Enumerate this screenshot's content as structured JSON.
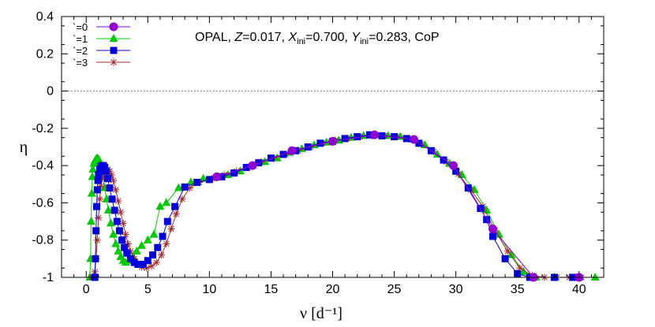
{
  "chart_data": {
    "type": "line",
    "annotation": {
      "prefix": "OPAL, ",
      "z_symbol": "Z",
      "z_value": "=0.017, ",
      "x_symbol": "X",
      "x_sub": "ini",
      "x_value": "=0.700, ",
      "y_symbol": "Y",
      "y_sub": "ini",
      "y_value": "=0.283, CoP"
    },
    "xlabel": "ν [d⁻¹]",
    "ylabel": "η",
    "xlim": [
      -2,
      42
    ],
    "ylim": [
      -1,
      0.4
    ],
    "x_ticks": [
      0,
      5,
      10,
      15,
      20,
      25,
      30,
      35,
      40
    ],
    "y_ticks": [
      0.4,
      0.2,
      0,
      -0.2,
      -0.4,
      -0.6,
      -0.8,
      -1
    ],
    "y_tick_labels": [
      "0.4",
      "0.2",
      "0",
      "-0.2",
      "-0.4",
      "-0.6",
      "-0.8",
      "-1"
    ],
    "zero_line": true,
    "legend_position": "top-left",
    "series": [
      {
        "name": "`=0",
        "color": "#9400d3",
        "marker": "circle",
        "points": [
          [
            10.6,
            -0.46
          ],
          [
            13.5,
            -0.4
          ],
          [
            16.7,
            -0.32
          ],
          [
            20.0,
            -0.27
          ],
          [
            23.4,
            -0.235
          ],
          [
            26.6,
            -0.26
          ],
          [
            29.8,
            -0.4
          ],
          [
            33.0,
            -0.74
          ],
          [
            36.3,
            -1.0
          ],
          [
            40.0,
            -1.0
          ]
        ]
      },
      {
        "name": "`=1",
        "color": "#00cc00",
        "marker": "triangle",
        "points": [
          [
            0.3,
            -1.0
          ],
          [
            0.35,
            -0.9
          ],
          [
            0.4,
            -0.7
          ],
          [
            0.45,
            -0.55
          ],
          [
            0.5,
            -0.46
          ],
          [
            0.55,
            -0.42
          ],
          [
            0.62,
            -0.39
          ],
          [
            0.7,
            -0.375
          ],
          [
            0.8,
            -0.365
          ],
          [
            0.9,
            -0.36
          ],
          [
            1.0,
            -0.365
          ],
          [
            1.1,
            -0.38
          ],
          [
            1.2,
            -0.41
          ],
          [
            1.35,
            -0.46
          ],
          [
            1.5,
            -0.52
          ],
          [
            1.65,
            -0.58
          ],
          [
            1.8,
            -0.64
          ],
          [
            2.0,
            -0.71
          ],
          [
            2.2,
            -0.77
          ],
          [
            2.4,
            -0.82
          ],
          [
            2.6,
            -0.86
          ],
          [
            2.8,
            -0.89
          ],
          [
            3.0,
            -0.91
          ],
          [
            3.2,
            -0.92
          ],
          [
            3.5,
            -0.91
          ],
          [
            3.8,
            -0.89
          ],
          [
            4.1,
            -0.86
          ],
          [
            4.5,
            -0.83
          ],
          [
            5.0,
            -0.8
          ],
          [
            5.5,
            -0.77
          ],
          [
            6.0,
            -0.62
          ],
          [
            6.5,
            -0.6
          ],
          [
            7.5,
            -0.52
          ],
          [
            8.5,
            -0.49
          ],
          [
            9.5,
            -0.47
          ],
          [
            10.5,
            -0.46
          ],
          [
            11.5,
            -0.45
          ],
          [
            12.5,
            -0.43
          ],
          [
            13.5,
            -0.4
          ],
          [
            14.5,
            -0.38
          ],
          [
            15.5,
            -0.36
          ],
          [
            16.5,
            -0.33
          ],
          [
            17.5,
            -0.31
          ],
          [
            18.5,
            -0.29
          ],
          [
            19.5,
            -0.275
          ],
          [
            20.5,
            -0.265
          ],
          [
            21.5,
            -0.25
          ],
          [
            22.5,
            -0.24
          ],
          [
            23.5,
            -0.235
          ],
          [
            24.5,
            -0.24
          ],
          [
            25.5,
            -0.245
          ],
          [
            26.5,
            -0.26
          ],
          [
            27.5,
            -0.29
          ],
          [
            28.5,
            -0.34
          ],
          [
            29.5,
            -0.39
          ],
          [
            30.5,
            -0.45
          ],
          [
            31.5,
            -0.53
          ],
          [
            32.5,
            -0.64
          ],
          [
            33.5,
            -0.77
          ],
          [
            34.5,
            -0.88
          ],
          [
            35.5,
            -0.97
          ],
          [
            36.5,
            -1.0
          ],
          [
            38.0,
            -1.0
          ],
          [
            40.0,
            -1.0
          ],
          [
            41.3,
            -1.0
          ]
        ]
      },
      {
        "name": "`=2",
        "color": "#0000dd",
        "marker": "square",
        "points": [
          [
            0.7,
            -1.0
          ],
          [
            0.75,
            -0.9
          ],
          [
            0.8,
            -0.75
          ],
          [
            0.85,
            -0.62
          ],
          [
            0.9,
            -0.53
          ],
          [
            0.95,
            -0.48
          ],
          [
            1.0,
            -0.45
          ],
          [
            1.1,
            -0.42
          ],
          [
            1.2,
            -0.405
          ],
          [
            1.3,
            -0.4
          ],
          [
            1.4,
            -0.4
          ],
          [
            1.5,
            -0.41
          ],
          [
            1.6,
            -0.43
          ],
          [
            1.75,
            -0.47
          ],
          [
            1.9,
            -0.52
          ],
          [
            2.1,
            -0.58
          ],
          [
            2.3,
            -0.64
          ],
          [
            2.5,
            -0.7
          ],
          [
            2.7,
            -0.75
          ],
          [
            2.9,
            -0.8
          ],
          [
            3.1,
            -0.84
          ],
          [
            3.3,
            -0.87
          ],
          [
            3.6,
            -0.9
          ],
          [
            3.9,
            -0.92
          ],
          [
            4.2,
            -0.93
          ],
          [
            4.6,
            -0.93
          ],
          [
            5.0,
            -0.91
          ],
          [
            5.4,
            -0.88
          ],
          [
            5.8,
            -0.84
          ],
          [
            6.2,
            -0.78
          ],
          [
            6.6,
            -0.7
          ],
          [
            7.2,
            -0.62
          ],
          [
            8.0,
            -0.515
          ],
          [
            9.0,
            -0.49
          ],
          [
            10.0,
            -0.475
          ],
          [
            11.0,
            -0.46
          ],
          [
            12.0,
            -0.44
          ],
          [
            13.0,
            -0.41
          ],
          [
            14.0,
            -0.385
          ],
          [
            15.0,
            -0.36
          ],
          [
            16.0,
            -0.34
          ],
          [
            17.0,
            -0.32
          ],
          [
            18.0,
            -0.3
          ],
          [
            19.0,
            -0.28
          ],
          [
            20.0,
            -0.27
          ],
          [
            21.0,
            -0.255
          ],
          [
            22.0,
            -0.245
          ],
          [
            23.0,
            -0.235
          ],
          [
            24.0,
            -0.24
          ],
          [
            25.0,
            -0.245
          ],
          [
            26.0,
            -0.255
          ],
          [
            27.0,
            -0.28
          ],
          [
            28.0,
            -0.32
          ],
          [
            29.0,
            -0.37
          ],
          [
            30.0,
            -0.43
          ],
          [
            31.0,
            -0.52
          ],
          [
            32.0,
            -0.63
          ],
          [
            32.5,
            -0.69
          ],
          [
            33.0,
            -0.78
          ],
          [
            34.0,
            -0.9
          ],
          [
            35.0,
            -0.98
          ],
          [
            36.0,
            -1.0
          ],
          [
            38.0,
            -1.0
          ],
          [
            39.5,
            -1.0
          ]
        ]
      },
      {
        "name": "`=3",
        "color": "#a52a2a",
        "marker": "star",
        "points": [
          [
            0.45,
            -1.0
          ],
          [
            0.55,
            -1.0
          ],
          [
            0.7,
            -0.97
          ],
          [
            0.8,
            -0.9
          ],
          [
            0.9,
            -0.8
          ],
          [
            1.0,
            -0.68
          ],
          [
            1.1,
            -0.58
          ],
          [
            1.2,
            -0.51
          ],
          [
            1.3,
            -0.47
          ],
          [
            1.45,
            -0.44
          ],
          [
            1.6,
            -0.425
          ],
          [
            1.75,
            -0.42
          ],
          [
            1.9,
            -0.43
          ],
          [
            2.05,
            -0.45
          ],
          [
            2.2,
            -0.48
          ],
          [
            2.4,
            -0.53
          ],
          [
            2.6,
            -0.59
          ],
          [
            2.8,
            -0.65
          ],
          [
            3.0,
            -0.71
          ],
          [
            3.2,
            -0.77
          ],
          [
            3.4,
            -0.82
          ],
          [
            3.6,
            -0.86
          ],
          [
            3.9,
            -0.9
          ],
          [
            4.2,
            -0.93
          ],
          [
            4.5,
            -0.945
          ],
          [
            4.9,
            -0.95
          ],
          [
            5.3,
            -0.94
          ],
          [
            5.7,
            -0.92
          ],
          [
            6.1,
            -0.88
          ],
          [
            6.5,
            -0.82
          ],
          [
            6.9,
            -0.74
          ],
          [
            7.3,
            -0.66
          ],
          [
            7.8,
            -0.58
          ],
          [
            8.4,
            -0.52
          ],
          [
            9.2,
            -0.49
          ],
          [
            10.2,
            -0.47
          ],
          [
            11.2,
            -0.45
          ],
          [
            12.2,
            -0.43
          ],
          [
            13.2,
            -0.405
          ],
          [
            14.2,
            -0.38
          ],
          [
            15.2,
            -0.36
          ],
          [
            16.2,
            -0.34
          ],
          [
            17.2,
            -0.32
          ],
          [
            18.2,
            -0.3
          ],
          [
            19.2,
            -0.28
          ],
          [
            20.2,
            -0.265
          ],
          [
            21.2,
            -0.255
          ],
          [
            22.2,
            -0.245
          ],
          [
            23.2,
            -0.24
          ],
          [
            24.2,
            -0.24
          ],
          [
            25.2,
            -0.245
          ],
          [
            26.2,
            -0.255
          ],
          [
            27.2,
            -0.285
          ],
          [
            28.2,
            -0.325
          ],
          [
            29.2,
            -0.38
          ],
          [
            30.2,
            -0.445
          ],
          [
            31.2,
            -0.53
          ],
          [
            32.2,
            -0.62
          ],
          [
            33.2,
            -0.75
          ],
          [
            34.2,
            -0.86
          ],
          [
            35.2,
            -0.95
          ],
          [
            36.2,
            -0.99
          ],
          [
            37.2,
            -1.0
          ],
          [
            38.2,
            -1.0
          ],
          [
            39.2,
            -1.0
          ],
          [
            40.2,
            -1.0
          ]
        ]
      }
    ]
  }
}
